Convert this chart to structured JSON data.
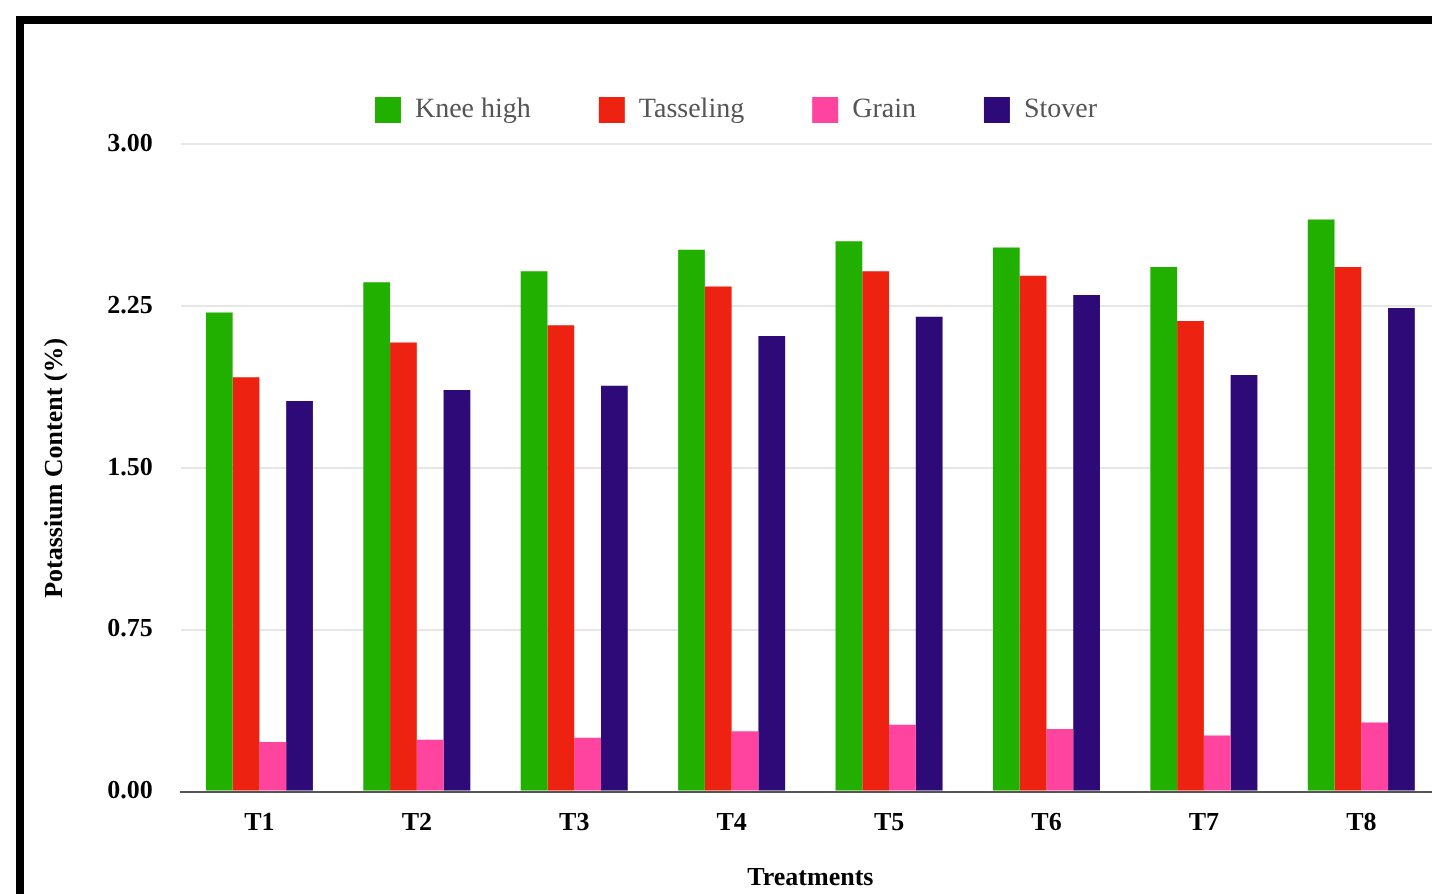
{
  "chart_data": {
    "type": "bar",
    "xlabel": "Treatments",
    "ylabel": "Potassium Content (%)",
    "categories": [
      "T1",
      "T2",
      "T3",
      "T4",
      "T5",
      "T6",
      "T7",
      "T8"
    ],
    "series": [
      {
        "name": "Knee high",
        "color": "#22b000",
        "values": [
          2.22,
          2.36,
          2.41,
          2.51,
          2.55,
          2.52,
          2.43,
          2.65
        ]
      },
      {
        "name": "Tasseling",
        "color": "#ee2211",
        "values": [
          1.92,
          2.08,
          2.16,
          2.34,
          2.41,
          2.39,
          2.18,
          2.43
        ]
      },
      {
        "name": "Grain",
        "color": "#ff44a0",
        "values": [
          0.23,
          0.24,
          0.25,
          0.28,
          0.31,
          0.29,
          0.26,
          0.32
        ]
      },
      {
        "name": "Stover",
        "color": "#2e0a78",
        "values": [
          1.81,
          1.86,
          1.88,
          2.11,
          2.2,
          2.3,
          1.93,
          2.24
        ]
      }
    ],
    "ylim": [
      0,
      3
    ],
    "yticks": [
      {
        "value": 0,
        "label": "0.00"
      },
      {
        "value": 0.75,
        "label": "0.75"
      },
      {
        "value": 1.5,
        "label": "1.50"
      },
      {
        "value": 2.25,
        "label": "2.25"
      },
      {
        "value": 3,
        "label": "3.00"
      }
    ],
    "grid": "y",
    "legend": "top"
  }
}
